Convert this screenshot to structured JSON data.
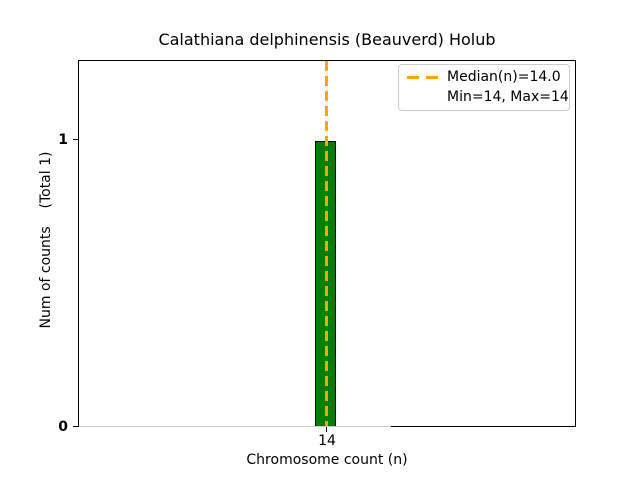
{
  "chart_data": {
    "type": "bar",
    "title": "Calathiana delphinensis (Beauverd) Holub",
    "xlabel": "Chromosome count (n)",
    "ylabel": "Num of counts    (Total 1)",
    "x": [
      14
    ],
    "values": [
      1
    ],
    "total_counts": 1,
    "median_n": 14.0,
    "min_n": 14,
    "max_n": 14,
    "xticks": [
      "14"
    ],
    "yticks": [
      "0",
      "1"
    ],
    "ylim": [
      0,
      1.28
    ],
    "grid": false,
    "legend": {
      "position": "upper right",
      "entries": [
        {
          "label": "Median(n)=14.0",
          "marker": "dashed-line",
          "color": "#FFA500"
        },
        {
          "label": "Min=14, Max=14",
          "marker": "none"
        }
      ]
    },
    "colors": {
      "bar_fill": "#008000",
      "bar_edge": "#000000",
      "median_line": "#FFA500",
      "background": "#FFFFFF",
      "legend_border": "#CCCCCC",
      "text": "#000000"
    }
  }
}
